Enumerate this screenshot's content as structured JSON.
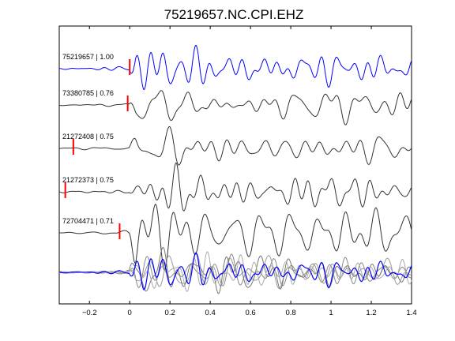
{
  "chart_data": {
    "type": "line",
    "title": "75219657.NC.CPI.EHZ",
    "xlabel": "",
    "ylabel": "",
    "xlim": [
      -0.35,
      1.4
    ],
    "xticks": [
      -0.2,
      0,
      0.2,
      0.4,
      0.6,
      0.8,
      1,
      1.2,
      1.4
    ],
    "xtick_labels": [
      "−0.2",
      "0",
      "0.2",
      "0.4",
      "0.6",
      "0.8",
      "1",
      "1.2",
      "1.4"
    ],
    "grid": false,
    "legend": "none",
    "traces": [
      {
        "label": "75219657 | 1.00",
        "event_id": "75219657",
        "correlation": 1.0,
        "pick_time": 0.0,
        "color": "#0000ff",
        "start_time": -0.35
      },
      {
        "label": "73380785 | 0.76",
        "event_id": "73380785",
        "correlation": 0.76,
        "pick_time": -0.01,
        "color": "#333333",
        "start_time": -0.35
      },
      {
        "label": "21272408 | 0.75",
        "event_id": "21272408",
        "correlation": 0.75,
        "pick_time": -0.28,
        "color": "#333333",
        "start_time": -0.35
      },
      {
        "label": "21272373 | 0.75",
        "event_id": "21272373",
        "correlation": 0.75,
        "pick_time": -0.32,
        "color": "#333333",
        "start_time": -0.35
      },
      {
        "label": "72704471 | 0.71",
        "event_id": "72704471",
        "correlation": 0.71,
        "pick_time": -0.05,
        "color": "#333333",
        "start_time": -0.35
      }
    ],
    "stack": {
      "reference_color": "#0000ff",
      "overlay_colors": [
        "#888888",
        "#999999",
        "#777777",
        "#aaaaaa"
      ]
    },
    "pick_marker_color": "#ff0000"
  }
}
